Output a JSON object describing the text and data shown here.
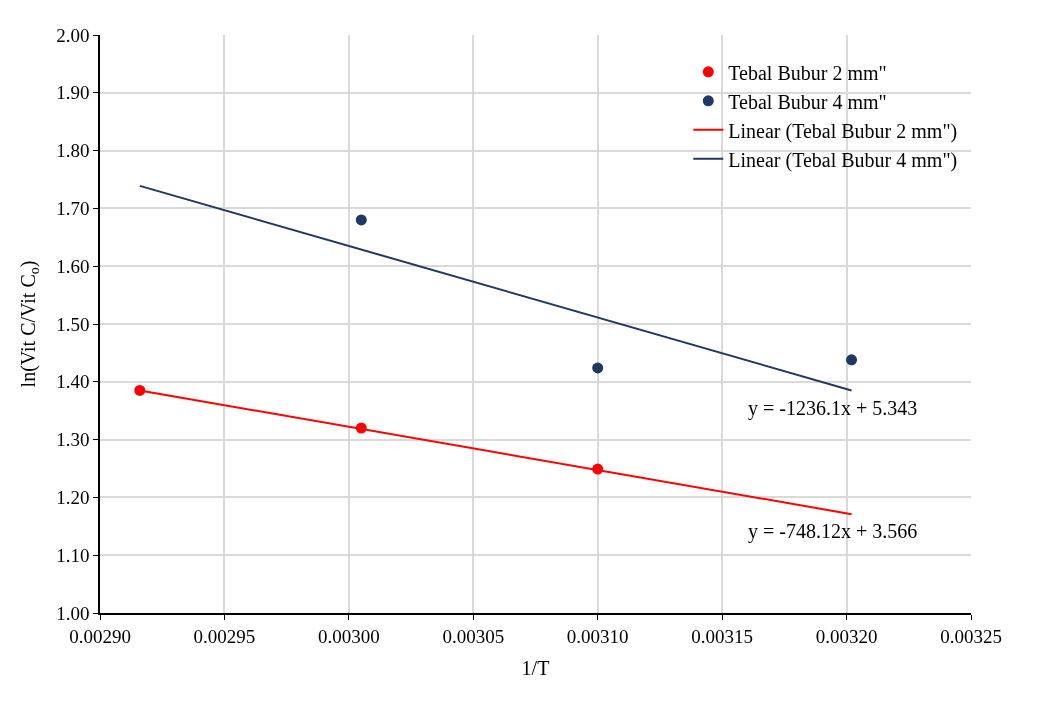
{
  "chart_data": {
    "type": "scatter",
    "xlabel": "1/T",
    "ylabel": "ln(Vit C/Vit C$_{o}$)",
    "series": [
      {
        "name": "Tebal Bubur 2 mm\"",
        "color": "#ff0000",
        "marker": "circle",
        "x": [
          0.002916,
          0.003005,
          0.0031
        ],
        "values": [
          1.385,
          1.32,
          1.249
        ]
      },
      {
        "name": "Tebal Bubur 4 mm\"",
        "color": "#203864",
        "marker": "circle",
        "x": [
          0.003005,
          0.0031,
          0.003202
        ],
        "values": [
          1.68,
          1.424,
          1.438
        ]
      },
      {
        "name": "Linear (Tebal Bubur 2 mm\")",
        "color": "#ff0000",
        "type": "line",
        "marker": "none",
        "line_style": "solid",
        "x": [
          0.002916,
          0.003202
        ],
        "values": [
          1.385,
          1.171
        ]
      },
      {
        "name": "Linear (Tebal Bubur 4 mm\")",
        "color": "#203864",
        "type": "line",
        "marker": "none",
        "line_style": "solid",
        "x": [
          0.002916,
          0.003202
        ],
        "values": [
          1.739,
          1.385
        ]
      }
    ],
    "xlim": [
      0.0029,
      0.00325
    ],
    "xticks": [
      {
        "value": 0.0029,
        "label": "0.00290"
      },
      {
        "value": 0.00295,
        "label": "0.00295"
      },
      {
        "value": 0.003,
        "label": "0.00300"
      },
      {
        "value": 0.00305,
        "label": "0.00305"
      },
      {
        "value": 0.0031,
        "label": "0.00310"
      },
      {
        "value": 0.00315,
        "label": "0.00315"
      },
      {
        "value": 0.0032,
        "label": "0.00320"
      },
      {
        "value": 0.00325,
        "label": "0.00325"
      }
    ],
    "ylim": [
      1.0,
      2.0
    ],
    "yticks": [
      {
        "value": 1.0,
        "label": "1.00"
      },
      {
        "value": 1.1,
        "label": "1.10"
      },
      {
        "value": 1.2,
        "label": "1.20"
      },
      {
        "value": 1.3,
        "label": "1.30"
      },
      {
        "value": 1.4,
        "label": "1.40"
      },
      {
        "value": 1.5,
        "label": "1.50"
      },
      {
        "value": 1.6,
        "label": "1.60"
      },
      {
        "value": 1.7,
        "label": "1.70"
      },
      {
        "value": 1.8,
        "label": "1.80"
      },
      {
        "value": 1.9,
        "label": "1.90"
      },
      {
        "value": 2.0,
        "label": "2.00"
      }
    ],
    "grid": true,
    "legend": "top right",
    "annotations": [
      "y = -1236.1x + 5.343",
      "y = -748.12x + 3.566"
    ]
  }
}
